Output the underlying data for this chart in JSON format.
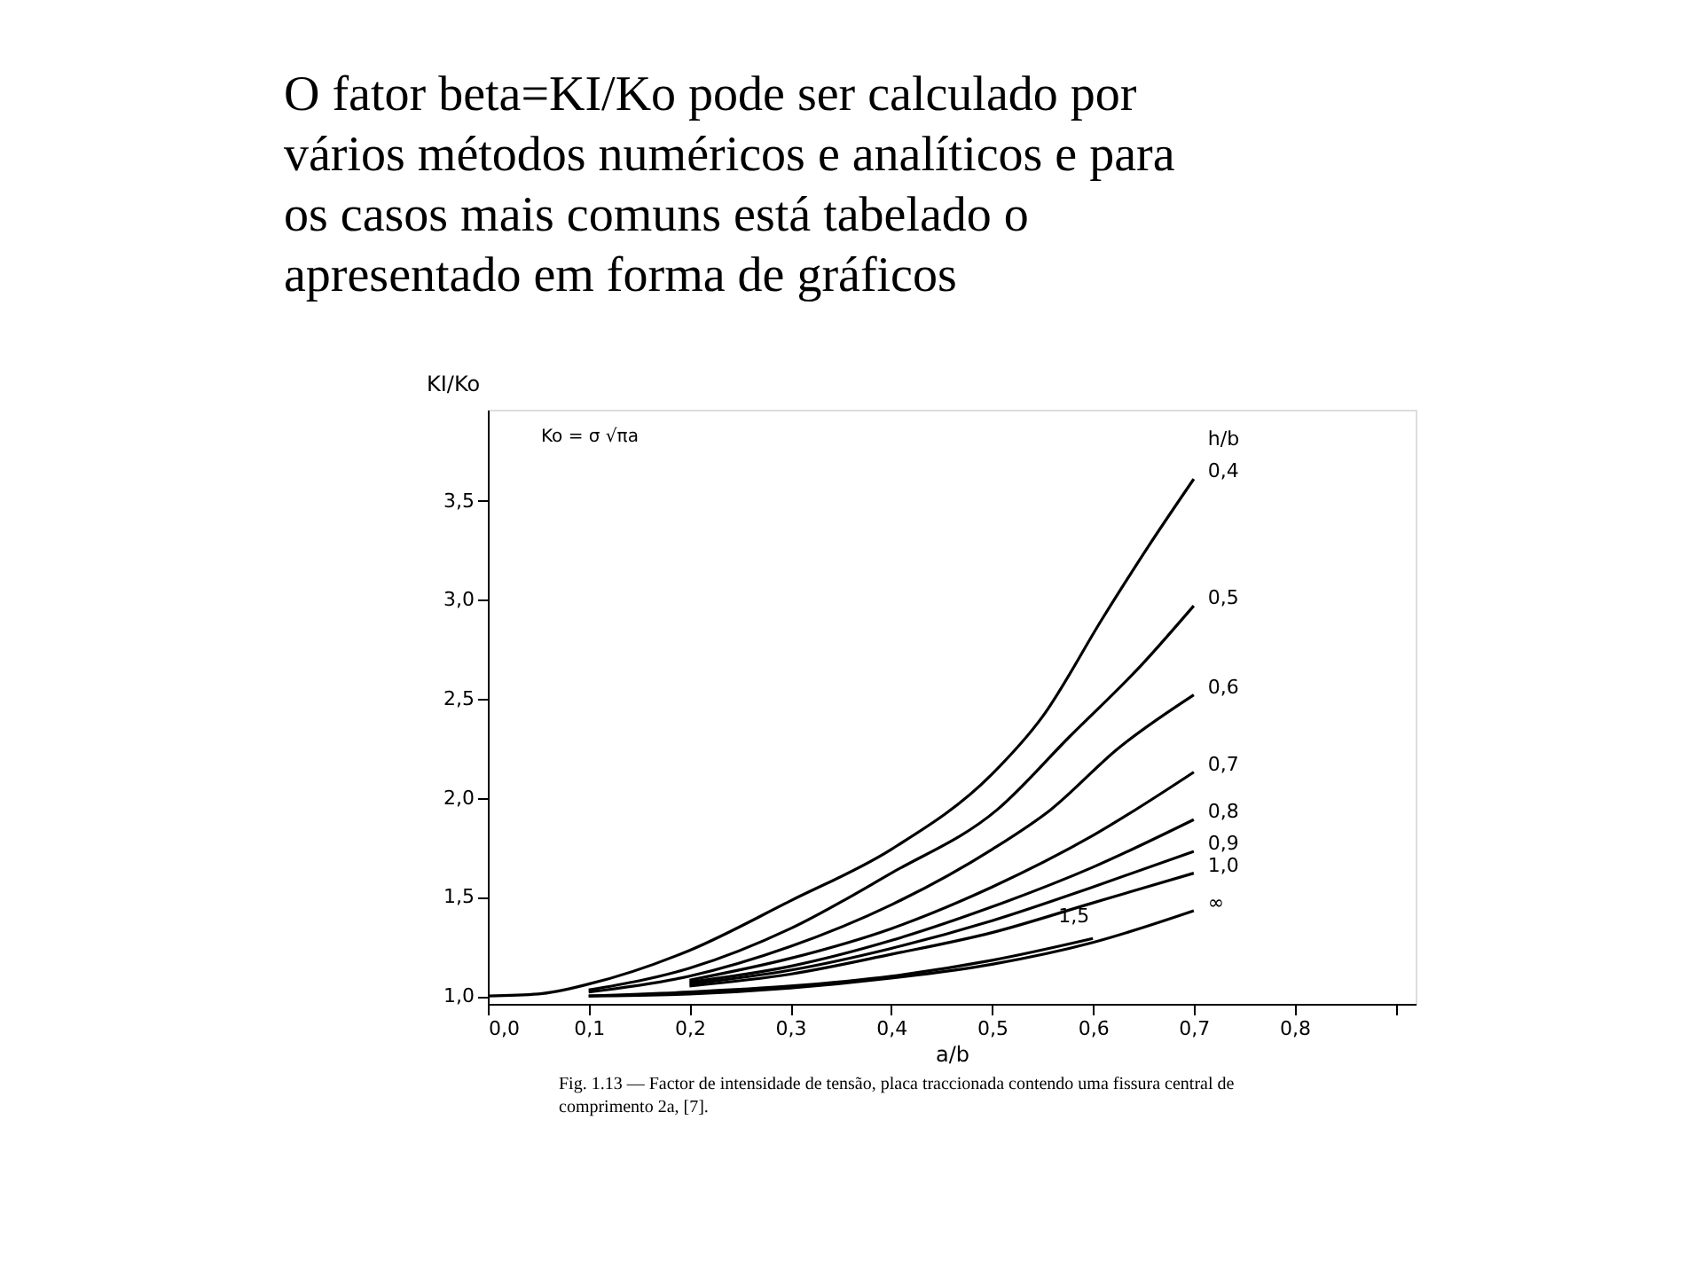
{
  "chart_data": {
    "type": "line",
    "title": "O fator beta=KI/Ko pode ser calculado por vários métodos numéricos e analíticos e para os casos mais comuns está tabelado o apresentado em forma de gráficos",
    "xlabel": "a/b",
    "ylabel": "KI/Ko",
    "legend_title": "h/b",
    "annotations": [
      "Ko = σ √πa",
      "Fig. 1.13 — Factor de intensidade de tensão, placa traccionada contendo uma fissura central de comprimento 2a, [7]."
    ],
    "series": [
      {
        "name": "0,4",
        "color": "#000000",
        "x": [
          0,
          0.05,
          0.1,
          0.2,
          0.3,
          0.4,
          0.5,
          0.55,
          0.61,
          0.655,
          0.7
        ],
        "values": [
          1.0,
          1.01,
          1.06,
          1.23,
          1.48,
          1.74,
          2.12,
          2.41,
          2.91,
          3.27,
          3.61
        ]
      },
      {
        "name": "0,5",
        "color": "#000000",
        "x": [
          0.1,
          0.2,
          0.3,
          0.4,
          0.505,
          0.577,
          0.648,
          0.7
        ],
        "values": [
          1.03,
          1.14,
          1.34,
          1.62,
          1.94,
          2.31,
          2.67,
          2.97
        ]
      },
      {
        "name": "0,6",
        "color": "#000000",
        "x": [
          0.1,
          0.2,
          0.3,
          0.4,
          0.5,
          0.558,
          0.625,
          0.7
        ],
        "values": [
          1.02,
          1.1,
          1.25,
          1.46,
          1.74,
          1.94,
          2.25,
          2.52
        ]
      },
      {
        "name": "0,7",
        "color": "#000000",
        "x": [
          0.2,
          0.3,
          0.4,
          0.5,
          0.6,
          0.7
        ],
        "values": [
          1.08,
          1.19,
          1.34,
          1.55,
          1.81,
          2.13
        ]
      },
      {
        "name": "0,8",
        "color": "#000000",
        "x": [
          0.2,
          0.3,
          0.4,
          0.5,
          0.6,
          0.7
        ],
        "values": [
          1.07,
          1.15,
          1.28,
          1.45,
          1.65,
          1.89
        ]
      },
      {
        "name": "0,9",
        "color": "#000000",
        "x": [
          0.2,
          0.3,
          0.4,
          0.5,
          0.6,
          0.7
        ],
        "values": [
          1.06,
          1.13,
          1.24,
          1.38,
          1.55,
          1.73
        ]
      },
      {
        "name": "1,0",
        "color": "#000000",
        "x": [
          0.2,
          0.3,
          0.4,
          0.5,
          0.6,
          0.7
        ],
        "values": [
          1.05,
          1.11,
          1.21,
          1.32,
          1.47,
          1.62
        ]
      },
      {
        "name": "∞",
        "color": "#000000",
        "x": [
          0.1,
          0.2,
          0.3,
          0.4,
          0.5,
          0.6,
          0.7
        ],
        "values": [
          1.0,
          1.01,
          1.04,
          1.09,
          1.16,
          1.27,
          1.43
        ]
      },
      {
        "name": "1,5",
        "color": "#000000",
        "x": [
          0.1,
          0.2,
          0.3,
          0.4,
          0.5,
          0.6
        ],
        "values": [
          1.0,
          1.02,
          1.05,
          1.1,
          1.18,
          1.29
        ]
      }
    ],
    "xlim": [
      0,
      0.92
    ],
    "ylim": [
      0.96,
      3.96
    ],
    "xticks": [
      {
        "value": 0,
        "label": "0,0"
      },
      {
        "value": 0.1,
        "label": "0,1"
      },
      {
        "value": 0.2,
        "label": "0,2"
      },
      {
        "value": 0.3,
        "label": "0,3"
      },
      {
        "value": 0.4,
        "label": "0,4"
      },
      {
        "value": 0.5,
        "label": "0,5"
      },
      {
        "value": 0.6,
        "label": "0,6"
      },
      {
        "value": 0.7,
        "label": "0,7"
      },
      {
        "value": 0.8,
        "label": "0,8"
      },
      {
        "value": 0.9,
        "label": null
      }
    ],
    "yticks": [
      {
        "value": 1.0,
        "label": "1,0"
      },
      {
        "value": 1.5,
        "label": "1,5"
      },
      {
        "value": 2.0,
        "label": "2,0"
      },
      {
        "value": 2.5,
        "label": "2,5"
      },
      {
        "value": 3.0,
        "label": "3,0"
      },
      {
        "value": 3.5,
        "label": "3,5"
      }
    ],
    "grid": false,
    "legend": false,
    "marker": "none",
    "line_style": "solid"
  }
}
